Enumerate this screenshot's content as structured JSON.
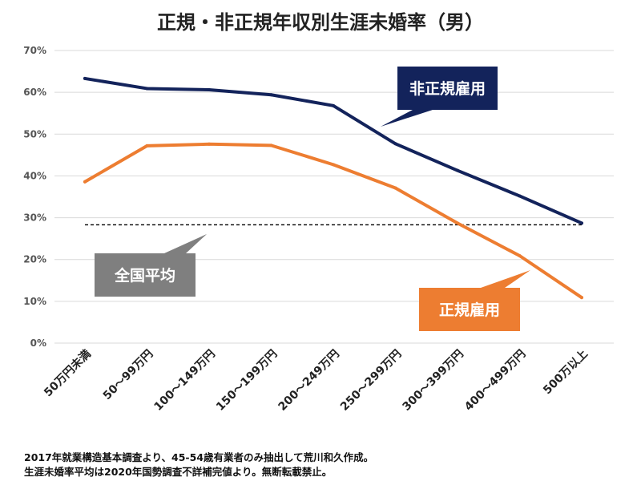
{
  "chart_data": {
    "type": "line",
    "title": "正規・非正規年収別生涯未婚率（男）",
    "categories": [
      "50万円未満",
      "50～99万円",
      "100～149万円",
      "150～199万円",
      "200～249万円",
      "250～299万円",
      "300～399万円",
      "400～499万円",
      "500万以上"
    ],
    "series": [
      {
        "name": "非正規雇用",
        "color": "#13235b",
        "values": [
          63.3,
          60.9,
          60.6,
          59.4,
          56.8,
          47.7,
          41.3,
          35.2,
          28.7
        ]
      },
      {
        "name": "正規雇用",
        "color": "#ed7d31",
        "values": [
          38.6,
          47.2,
          47.6,
          47.3,
          42.7,
          37.1,
          28.7,
          20.9,
          10.9
        ]
      }
    ],
    "reference_line": {
      "name": "全国平均",
      "value": 28.3,
      "color": "#000000",
      "style": "dashed"
    },
    "ylim": [
      0,
      70
    ],
    "y_ticks": [
      "0%",
      "10%",
      "20%",
      "30%",
      "40%",
      "50%",
      "60%",
      "70%"
    ],
    "grid": true,
    "callouts": [
      {
        "label": "非正規雇用",
        "color": "#13235b"
      },
      {
        "label": "全国平均",
        "color": "#7f7f7f"
      },
      {
        "label": "正規雇用",
        "color": "#ed7d31"
      }
    ]
  },
  "footnotes": [
    "2017年就業構造基本調査より、45-54歳有業者のみ抽出して荒川和久作成。",
    "生涯未婚率平均は2020年国勢調査不詳補完値より。無断転載禁止。"
  ]
}
